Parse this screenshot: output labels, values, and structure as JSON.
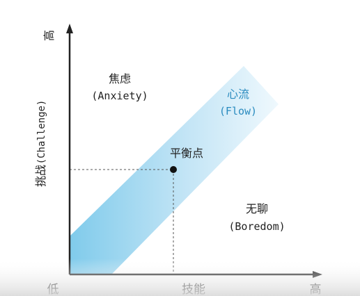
{
  "axes": {
    "y_high": "高",
    "y_label_cn": "挑战",
    "y_label_en": "(Challenge)",
    "x_low": "低",
    "x_label": "技能",
    "x_high": "高"
  },
  "regions": {
    "anxiety_cn": "焦虑",
    "anxiety_en": "(Anxiety)",
    "flow_cn": "心流",
    "flow_en": "(Flow)",
    "boredom_cn": "无聊",
    "boredom_en": "(Boredom)"
  },
  "balance_point": {
    "label": "平衡点"
  },
  "colors": {
    "axis": "#222222",
    "flow_band_dark": "#6cc2e6",
    "flow_band_light": "#e9f6fc",
    "flow_text": "#2a8bbf",
    "text": "#222222",
    "dashed": "#555555"
  }
}
